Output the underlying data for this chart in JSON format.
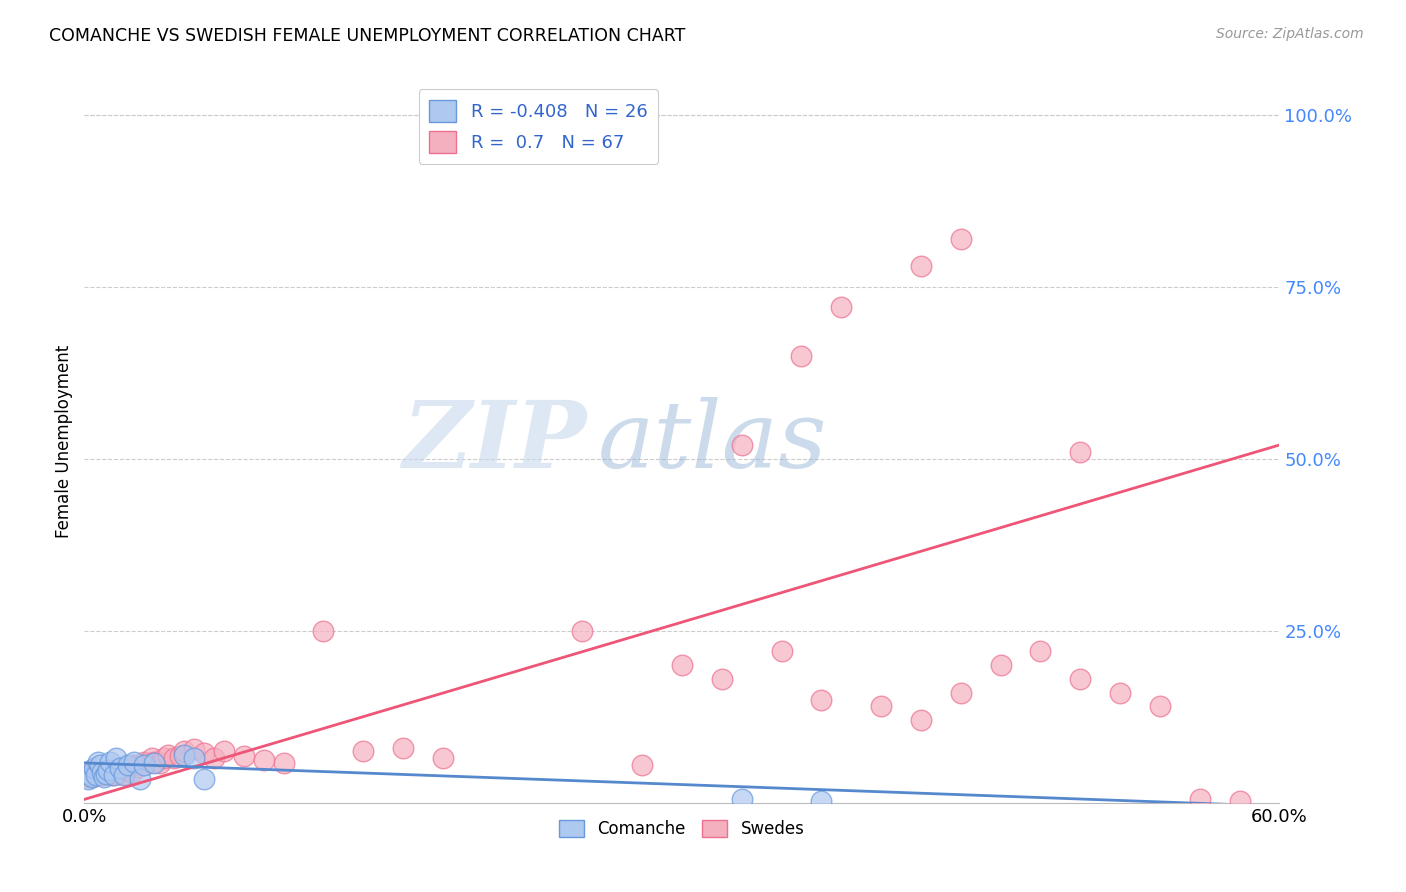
{
  "title": "COMANCHE VS SWEDISH FEMALE UNEMPLOYMENT CORRELATION CHART",
  "source": "Source: ZipAtlas.com",
  "ylabel": "Female Unemployment",
  "xlim": [
    0.0,
    0.6
  ],
  "ylim": [
    0.0,
    1.05
  ],
  "ytick_vals": [
    0.25,
    0.5,
    0.75,
    1.0
  ],
  "comanche_color": "#aec8f0",
  "comanche_edge": "#6699dd",
  "swedes_color": "#f5b0c0",
  "swedes_edge": "#ee7090",
  "comanche_R": -0.408,
  "comanche_N": 26,
  "swedes_R": 0.7,
  "swedes_N": 67,
  "comanche_line_color": "#5588cc",
  "swedes_line_color": "#ee5577",
  "watermark_zip": "ZIP",
  "watermark_atlas": "atlas",
  "legend_labels": [
    "Comanche",
    "Swedes"
  ],
  "comanche_scatter_x": [
    0.002,
    0.003,
    0.004,
    0.005,
    0.006,
    0.007,
    0.008,
    0.009,
    0.01,
    0.011,
    0.012,
    0.013,
    0.015,
    0.016,
    0.018,
    0.02,
    0.022,
    0.025,
    0.028,
    0.03,
    0.035,
    0.05,
    0.055,
    0.06,
    0.33,
    0.37
  ],
  "comanche_scatter_y": [
    0.035,
    0.04,
    0.038,
    0.05,
    0.04,
    0.06,
    0.055,
    0.045,
    0.038,
    0.042,
    0.048,
    0.06,
    0.04,
    0.065,
    0.05,
    0.04,
    0.055,
    0.06,
    0.035,
    0.055,
    0.058,
    0.07,
    0.065,
    0.035,
    0.005,
    0.002
  ],
  "swedes_scatter_x": [
    0.002,
    0.003,
    0.004,
    0.005,
    0.006,
    0.007,
    0.008,
    0.009,
    0.01,
    0.011,
    0.012,
    0.013,
    0.014,
    0.015,
    0.016,
    0.017,
    0.018,
    0.019,
    0.02,
    0.021,
    0.022,
    0.024,
    0.025,
    0.027,
    0.03,
    0.032,
    0.034,
    0.035,
    0.038,
    0.04,
    0.042,
    0.045,
    0.048,
    0.05,
    0.055,
    0.06,
    0.065,
    0.07,
    0.08,
    0.09,
    0.1,
    0.12,
    0.14,
    0.16,
    0.18,
    0.25,
    0.28,
    0.3,
    0.32,
    0.35,
    0.37,
    0.4,
    0.42,
    0.44,
    0.46,
    0.48,
    0.5,
    0.52,
    0.54,
    0.56,
    0.58,
    0.42,
    0.44,
    0.36,
    0.38,
    0.33,
    0.5
  ],
  "swedes_scatter_y": [
    0.038,
    0.042,
    0.038,
    0.04,
    0.042,
    0.04,
    0.045,
    0.042,
    0.04,
    0.045,
    0.048,
    0.042,
    0.04,
    0.048,
    0.045,
    0.042,
    0.045,
    0.05,
    0.042,
    0.048,
    0.05,
    0.045,
    0.055,
    0.052,
    0.06,
    0.058,
    0.065,
    0.06,
    0.058,
    0.065,
    0.07,
    0.065,
    0.068,
    0.075,
    0.078,
    0.072,
    0.065,
    0.075,
    0.068,
    0.062,
    0.058,
    0.25,
    0.075,
    0.08,
    0.065,
    0.25,
    0.055,
    0.2,
    0.18,
    0.22,
    0.15,
    0.14,
    0.12,
    0.16,
    0.2,
    0.22,
    0.18,
    0.16,
    0.14,
    0.005,
    0.002,
    0.78,
    0.82,
    0.65,
    0.72,
    0.52,
    0.51
  ]
}
